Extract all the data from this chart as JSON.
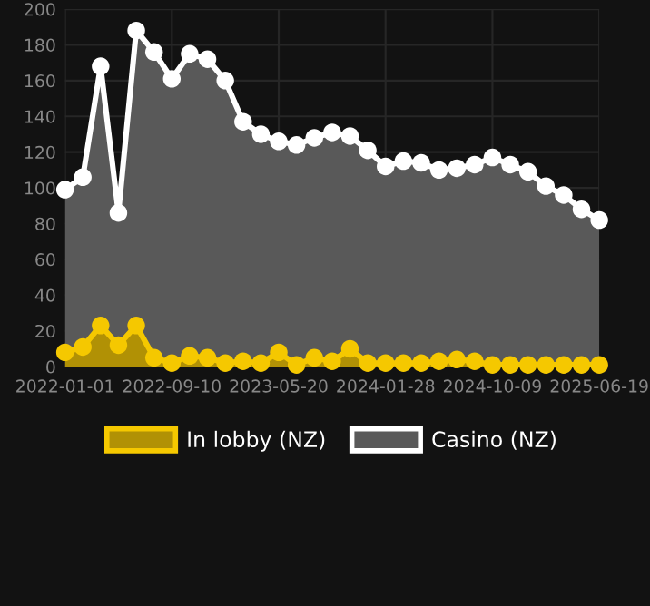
{
  "chart_data": {
    "type": "area",
    "categories": [
      "2022-01-01",
      null,
      null,
      null,
      null,
      null,
      "2022-09-10",
      null,
      null,
      null,
      null,
      null,
      "2023-05-20",
      null,
      null,
      null,
      null,
      null,
      "2024-01-28",
      null,
      null,
      null,
      null,
      null,
      "2024-10-09",
      null,
      null,
      null,
      null,
      null,
      "2025-06-19"
    ],
    "series": [
      {
        "name": "In lobby (NZ)",
        "color": "#f5c800",
        "values": [
          8,
          11,
          23,
          12,
          23,
          5,
          2,
          6,
          5,
          2,
          3,
          2,
          8,
          1,
          5,
          3,
          10,
          2,
          2,
          2,
          2,
          3,
          4,
          3,
          1,
          1,
          1,
          1,
          1,
          1,
          1
        ]
      },
      {
        "name": "Casino (NZ)",
        "color": "#ffffff",
        "values": [
          99,
          106,
          168,
          86,
          188,
          176,
          161,
          175,
          172,
          160,
          137,
          130,
          126,
          124,
          128,
          131,
          129,
          121,
          112,
          115,
          114,
          110,
          111,
          113,
          117,
          113,
          109,
          101,
          96,
          88,
          82
        ]
      }
    ],
    "ylim": [
      0,
      200
    ],
    "yticks": [
      0,
      20,
      40,
      60,
      80,
      100,
      120,
      140,
      160,
      180,
      200
    ],
    "grid": true,
    "legend": "bottom",
    "marker": "circle",
    "line_style": "solid"
  }
}
